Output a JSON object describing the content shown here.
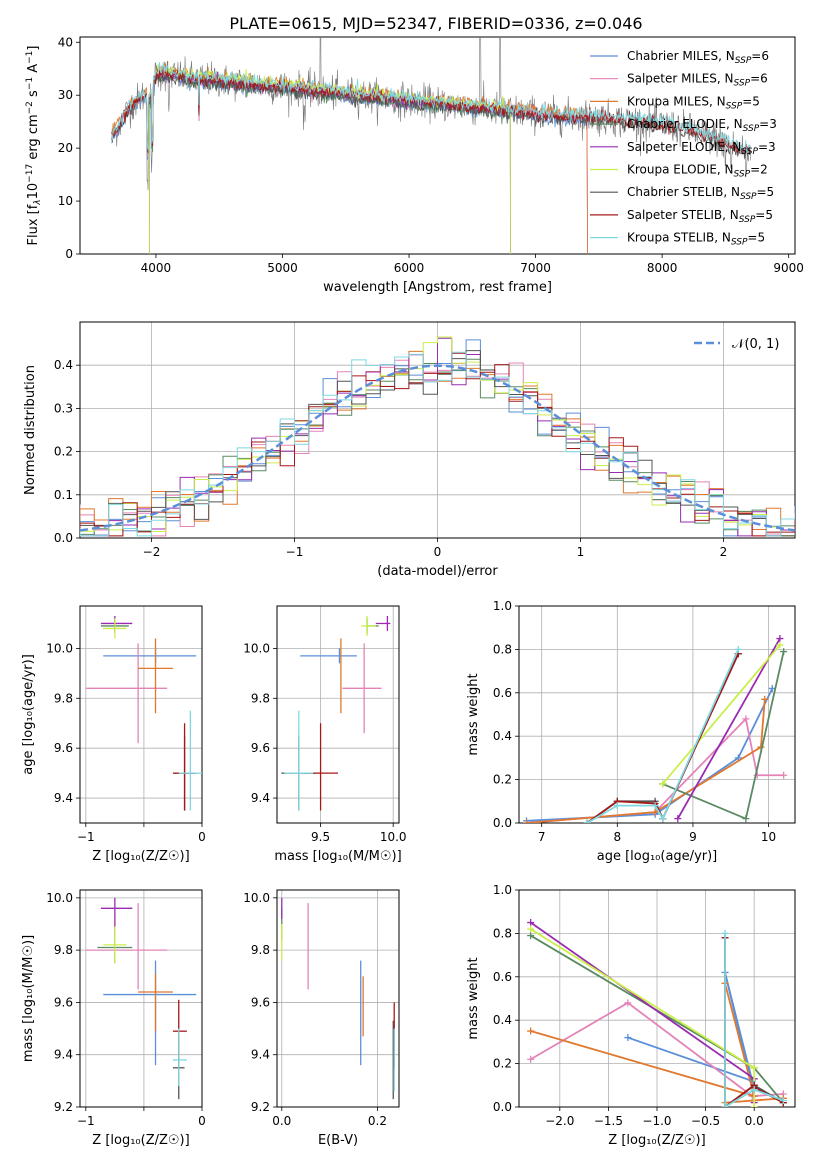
{
  "figure": {
    "title": "PLATE=0615, MJD=52347, FIBERID=0336, z=0.046"
  },
  "colors": {
    "Chabrier MILES": "#5b8fd9",
    "Salpeter MILES": "#e483b8",
    "Kroupa MILES": "#e0782e",
    "Chabrier ELODIE": "#5a8a62",
    "Salpeter ELODIE": "#9a2bb0",
    "Kroupa ELODIE": "#c9ef4a",
    "Chabrier STELIB": "#555555",
    "Salpeter STELIB": "#a51818",
    "Kroupa STELIB": "#7fd8e0"
  },
  "chart_data": [
    {
      "id": "spectrum",
      "type": "line",
      "xlabel": "wavelength [Angstrom, rest frame]",
      "ylabel_parts": [
        "Flux [f",
        "λ",
        "10",
        "−17",
        " erg cm",
        "−2",
        " s",
        "−1",
        " A",
        "−1",
        "]"
      ],
      "xlim": [
        3400,
        9050
      ],
      "ylim": [
        0,
        41
      ],
      "xticks": [
        4000,
        5000,
        6000,
        7000,
        8000,
        9000
      ],
      "yticks": [
        0,
        10,
        20,
        30,
        40
      ],
      "grid": false,
      "legend_position": "upper-right",
      "legend": [
        {
          "name": "Chabrier MILES",
          "nssp": "6"
        },
        {
          "name": "Salpeter MILES",
          "nssp": "6"
        },
        {
          "name": "Kroupa MILES",
          "nssp": "5"
        },
        {
          "name": "Chabrier ELODIE",
          "nssp": "3"
        },
        {
          "name": "Salpeter ELODIE",
          "nssp": "3"
        },
        {
          "name": "Kroupa ELODIE",
          "nssp": "2"
        },
        {
          "name": "Chabrier STELIB",
          "nssp": "5"
        },
        {
          "name": "Salpeter STELIB",
          "nssp": "5"
        },
        {
          "name": "Kroupa STELIB",
          "nssp": "5"
        }
      ],
      "nssp_prefix": "N",
      "nssp_sub": "SSP",
      "data_curve": {
        "x": [
          3650,
          3700,
          3800,
          3900,
          3950,
          4000,
          4100,
          4200,
          4300,
          4400,
          4600,
          4800,
          5000,
          5200,
          5400,
          5600,
          5800,
          6000,
          6200,
          6400,
          6600,
          6800,
          7000,
          7200,
          7400,
          7600,
          7800,
          8000,
          8200,
          8400,
          8600,
          8700
        ],
        "y": [
          22,
          24,
          28,
          30,
          29,
          34,
          34,
          33.5,
          33,
          33,
          32.5,
          32,
          31.5,
          31,
          30.5,
          30,
          29.5,
          29,
          28.5,
          28,
          27.5,
          27,
          26.5,
          26,
          26,
          25.5,
          25,
          24.5,
          23.5,
          22,
          20,
          19
        ]
      },
      "model_ranges": {
        "Chabrier MILES": [
          3650,
          7410
        ],
        "Salpeter MILES": [
          3650,
          7410
        ],
        "Kroupa MILES": [
          3650,
          7410
        ],
        "Chabrier ELODIE": [
          3950,
          6800
        ],
        "Salpeter ELODIE": [
          3950,
          6800
        ],
        "Kroupa ELODIE": [
          3950,
          6800
        ],
        "Chabrier STELIB": [
          3650,
          8700
        ],
        "Salpeter STELIB": [
          3650,
          8700
        ],
        "Kroupa STELIB": [
          3650,
          8700
        ]
      }
    },
    {
      "id": "residuals",
      "type": "step",
      "xlabel": "(data-model)/error",
      "ylabel": "Normed distribution",
      "xlim": [
        -2.5,
        2.5
      ],
      "ylim": [
        0,
        0.5
      ],
      "xticks": [
        -2,
        -1,
        0,
        1,
        2
      ],
      "yticks": [
        0.0,
        0.1,
        0.2,
        0.3,
        0.4
      ],
      "grid": true,
      "legend_position": "upper-right",
      "legend_label": "𝒩(0, 1)",
      "gauss_color": "#5b8fd9"
    },
    {
      "id": "age-vs-z",
      "type": "errorbar",
      "xlabel": "Z [log₁₀(Z/Z☉)]",
      "ylabel": "age  [log₁₀(age/yr)]",
      "xlim": [
        -1.05,
        0
      ],
      "ylim": [
        9.3,
        10.17
      ],
      "xticks": [
        -1,
        -0.5,
        0
      ],
      "xticklabels": [
        "−1",
        "",
        "0"
      ],
      "yticks": [
        9.4,
        9.6,
        9.8,
        10.0
      ],
      "grid": true,
      "points": [
        {
          "model": "Chabrier MILES",
          "x": -0.4,
          "xerr": [
            0.45,
            0.35
          ],
          "y": 9.97,
          "yerr": [
            0.03,
            0.03
          ]
        },
        {
          "model": "Salpeter MILES",
          "x": -0.55,
          "xerr": [
            0.45,
            0.25
          ],
          "y": 9.84,
          "yerr": [
            0.22,
            0.18
          ]
        },
        {
          "model": "Kroupa MILES",
          "x": -0.4,
          "xerr": [
            0.15,
            0.15
          ],
          "y": 9.92,
          "yerr": [
            0.18,
            0.12
          ]
        },
        {
          "model": "Chabrier ELODIE",
          "x": -0.75,
          "xerr": [
            0.12,
            0.12
          ],
          "y": 10.09,
          "yerr": [
            0.03,
            0.03
          ]
        },
        {
          "model": "Salpeter ELODIE",
          "x": -0.75,
          "xerr": [
            0.12,
            0.15
          ],
          "y": 10.1,
          "yerr": [
            0.03,
            0.03
          ]
        },
        {
          "model": "Kroupa ELODIE",
          "x": -0.75,
          "xerr": [
            0.1,
            0.1
          ],
          "y": 10.08,
          "yerr": [
            0.04,
            0.04
          ]
        },
        {
          "model": "Chabrier STELIB",
          "x": -0.15,
          "xerr": [
            0.1,
            0.1
          ],
          "y": 9.5,
          "yerr": [
            0.15,
            0.15
          ]
        },
        {
          "model": "Salpeter STELIB",
          "x": -0.15,
          "xerr": [
            0.1,
            0.1
          ],
          "y": 9.5,
          "yerr": [
            0.15,
            0.2
          ]
        },
        {
          "model": "Kroupa STELIB",
          "x": -0.1,
          "xerr": [
            0.1,
            0.12
          ],
          "y": 9.5,
          "yerr": [
            0.15,
            0.25
          ]
        }
      ]
    },
    {
      "id": "age-vs-mass",
      "type": "errorbar",
      "xlabel": "mass [log₁₀(M/M☉)]",
      "ylabel": "",
      "xlim": [
        9.2,
        10.04
      ],
      "ylim": [
        9.3,
        10.17
      ],
      "xticks": [
        9.5,
        10.0
      ],
      "yticks": [
        9.4,
        9.6,
        9.8,
        10.0
      ],
      "grid": true,
      "points": [
        {
          "model": "Chabrier MILES",
          "x": 9.63,
          "xerr": [
            0.27,
            0.12
          ],
          "y": 9.97,
          "yerr": [
            0.03,
            0.03
          ]
        },
        {
          "model": "Salpeter MILES",
          "x": 9.8,
          "xerr": [
            0.15,
            0.12
          ],
          "y": 9.84,
          "yerr": [
            0.18,
            0.18
          ]
        },
        {
          "model": "Kroupa MILES",
          "x": 9.64,
          "xerr": [
            0.0,
            0.0
          ],
          "y": 9.92,
          "yerr": [
            0.18,
            0.12
          ]
        },
        {
          "model": "Chabrier ELODIE",
          "x": 9.82,
          "xerr": [
            0.0,
            0.08
          ],
          "y": 10.09,
          "yerr": [
            0.03,
            0.03
          ]
        },
        {
          "model": "Salpeter ELODIE",
          "x": 9.96,
          "xerr": [
            0.08,
            0.02
          ],
          "y": 10.1,
          "yerr": [
            0.03,
            0.03
          ]
        },
        {
          "model": "Kroupa ELODIE",
          "x": 9.82,
          "xerr": [
            0.04,
            0.06
          ],
          "y": 10.09,
          "yerr": [
            0.04,
            0.04
          ]
        },
        {
          "model": "Chabrier STELIB",
          "x": 9.35,
          "xerr": [
            0.12,
            0.12
          ],
          "y": 9.5,
          "yerr": [
            0.15,
            0.15
          ]
        },
        {
          "model": "Salpeter STELIB",
          "x": 9.5,
          "xerr": [
            0.12,
            0.12
          ],
          "y": 9.5,
          "yerr": [
            0.15,
            0.2
          ]
        },
        {
          "model": "Kroupa STELIB",
          "x": 9.35,
          "xerr": [
            0.1,
            0.1
          ],
          "y": 9.5,
          "yerr": [
            0.15,
            0.25
          ]
        }
      ]
    },
    {
      "id": "weight-vs-age",
      "type": "line",
      "xlabel": "age  [log₁₀(age/yr)]",
      "ylabel": "mass weight",
      "xlim": [
        6.7,
        10.35
      ],
      "ylim": [
        0,
        1
      ],
      "xticks": [
        7,
        8,
        9,
        10
      ],
      "yticks": [
        0.0,
        0.2,
        0.4,
        0.6,
        0.8,
        1.0
      ],
      "grid": true,
      "series": [
        {
          "model": "Chabrier MILES",
          "x": [
            6.8,
            8.5,
            9.6,
            10.05
          ],
          "y": [
            0.01,
            0.04,
            0.3,
            0.62
          ]
        },
        {
          "model": "Salpeter MILES",
          "x": [
            6.8,
            8.5,
            9.7,
            9.85,
            10.2
          ],
          "y": [
            0.0,
            0.05,
            0.48,
            0.22,
            0.22
          ]
        },
        {
          "model": "Kroupa MILES",
          "x": [
            6.8,
            8.5,
            9.9,
            9.95
          ],
          "y": [
            0.0,
            0.05,
            0.35,
            0.57
          ]
        },
        {
          "model": "Chabrier ELODIE",
          "x": [
            8.6,
            9.7,
            10.2
          ],
          "y": [
            0.18,
            0.02,
            0.79
          ]
        },
        {
          "model": "Salpeter ELODIE",
          "x": [
            8.8,
            10.15
          ],
          "y": [
            0.02,
            0.85
          ]
        },
        {
          "model": "Kroupa ELODIE",
          "x": [
            8.6,
            10.15
          ],
          "y": [
            0.18,
            0.82
          ]
        },
        {
          "model": "Chabrier STELIB",
          "x": [
            7.6,
            8.0,
            8.5,
            8.6,
            9.6
          ],
          "y": [
            0.0,
            0.1,
            0.1,
            0.02,
            0.78
          ]
        },
        {
          "model": "Salpeter STELIB",
          "x": [
            7.6,
            8.0,
            8.5,
            8.6,
            9.6
          ],
          "y": [
            0.0,
            0.1,
            0.09,
            0.02,
            0.78
          ]
        },
        {
          "model": "Kroupa STELIB",
          "x": [
            7.6,
            8.0,
            8.5,
            8.6,
            9.6
          ],
          "y": [
            0.0,
            0.08,
            0.08,
            0.02,
            0.8
          ]
        }
      ]
    },
    {
      "id": "mass-vs-z",
      "type": "errorbar",
      "xlabel": "Z [log₁₀(Z/Z☉)]",
      "ylabel": "mass [log₁₀(M/M☉)]",
      "xlim": [
        -1.05,
        0
      ],
      "ylim": [
        9.2,
        10.03
      ],
      "xticks": [
        -1,
        -0.5,
        0
      ],
      "xticklabels": [
        "−1",
        "",
        "0"
      ],
      "yticks": [
        9.2,
        9.4,
        9.6,
        9.8,
        10.0
      ],
      "grid": true,
      "points": [
        {
          "model": "Chabrier MILES",
          "x": -0.4,
          "xerr": [
            0.45,
            0.35
          ],
          "y": 9.63,
          "yerr": [
            0.27,
            0.13
          ]
        },
        {
          "model": "Salpeter MILES",
          "x": -0.55,
          "xerr": [
            0.45,
            0.25
          ],
          "y": 9.8,
          "yerr": [
            0.15,
            0.18
          ]
        },
        {
          "model": "Kroupa MILES",
          "x": -0.4,
          "xerr": [
            0.15,
            0.15
          ],
          "y": 9.64,
          "yerr": [
            0.15,
            0.07
          ]
        },
        {
          "model": "Chabrier ELODIE",
          "x": -0.75,
          "xerr": [
            0.15,
            0.15
          ],
          "y": 9.81,
          "yerr": [
            0.06,
            0.06
          ]
        },
        {
          "model": "Salpeter ELODIE",
          "x": -0.75,
          "xerr": [
            0.12,
            0.15
          ],
          "y": 9.96,
          "yerr": [
            0.1,
            0.04
          ]
        },
        {
          "model": "Kroupa ELODIE",
          "x": -0.75,
          "xerr": [
            0.1,
            0.1
          ],
          "y": 9.82,
          "yerr": [
            0.07,
            0.07
          ]
        },
        {
          "model": "Chabrier STELIB",
          "x": -0.2,
          "xerr": [
            0.05,
            0.05
          ],
          "y": 9.35,
          "yerr": [
            0.12,
            0.12
          ]
        },
        {
          "model": "Salpeter STELIB",
          "x": -0.2,
          "xerr": [
            0.05,
            0.07
          ],
          "y": 9.49,
          "yerr": [
            0.12,
            0.12
          ]
        },
        {
          "model": "Kroupa STELIB",
          "x": -0.2,
          "xerr": [
            0.05,
            0.07
          ],
          "y": 9.38,
          "yerr": [
            0.1,
            0.12
          ]
        }
      ]
    },
    {
      "id": "mass-vs-ebv",
      "type": "errorbar",
      "xlabel": "E(B-V)",
      "ylabel": "",
      "xlim": [
        -0.01,
        0.245
      ],
      "ylim": [
        9.2,
        10.03
      ],
      "xticks": [
        0.0,
        0.2
      ],
      "yticks": [
        9.2,
        9.4,
        9.6,
        9.8,
        10.0
      ],
      "grid": true,
      "points": [
        {
          "model": "Chabrier MILES",
          "x": 0.165,
          "xerr": [
            0,
            0
          ],
          "y": 9.5,
          "yerr": [
            0.14,
            0.26
          ]
        },
        {
          "model": "Salpeter MILES",
          "x": 0.055,
          "xerr": [
            0,
            0
          ],
          "y": 9.8,
          "yerr": [
            0.15,
            0.18
          ]
        },
        {
          "model": "Kroupa MILES",
          "x": 0.17,
          "xerr": [
            0,
            0
          ],
          "y": 9.5,
          "yerr": [
            0.03,
            0.2
          ]
        },
        {
          "model": "Chabrier ELODIE",
          "x": 0.0,
          "xerr": [
            0,
            0
          ],
          "y": 9.9,
          "yerr": [
            0.06,
            0.06
          ]
        },
        {
          "model": "Salpeter ELODIE",
          "x": 0.0,
          "xerr": [
            0,
            0
          ],
          "y": 9.96,
          "yerr": [
            0.04,
            0.04
          ]
        },
        {
          "model": "Kroupa ELODIE",
          "x": 0.0,
          "xerr": [
            0,
            0
          ],
          "y": 9.83,
          "yerr": [
            0.07,
            0.07
          ]
        },
        {
          "model": "Chabrier STELIB",
          "x": 0.233,
          "xerr": [
            0,
            0
          ],
          "y": 9.4,
          "yerr": [
            0.17,
            0.13
          ]
        },
        {
          "model": "Salpeter STELIB",
          "x": 0.235,
          "xerr": [
            0,
            0
          ],
          "y": 9.45,
          "yerr": [
            0.1,
            0.15
          ]
        },
        {
          "model": "Kroupa STELIB",
          "x": 0.235,
          "xerr": [
            0,
            0
          ],
          "y": 9.38,
          "yerr": [
            0.12,
            0.12
          ]
        }
      ]
    },
    {
      "id": "weight-vs-z",
      "type": "line",
      "xlabel": "Z [log₁₀(Z/Z☉)]",
      "ylabel": "mass weight",
      "xlim": [
        -2.42,
        0.42
      ],
      "ylim": [
        0,
        1
      ],
      "xticks": [
        -2.0,
        -1.5,
        -1.0,
        -0.5,
        0.0
      ],
      "yticks": [
        0.0,
        0.2,
        0.4,
        0.6,
        0.8,
        1.0
      ],
      "grid": true,
      "series": [
        {
          "model": "Chabrier MILES",
          "x": [
            -1.3,
            -0.02,
            -0.3,
            0.0
          ],
          "y": [
            0.32,
            0.12,
            0.62,
            0.05
          ]
        },
        {
          "model": "Salpeter MILES",
          "x": [
            -2.3,
            -1.3,
            -0.02,
            0.3
          ],
          "y": [
            0.22,
            0.48,
            0.05,
            0.06
          ]
        },
        {
          "model": "Kroupa MILES",
          "x": [
            -2.3,
            0.0,
            -0.3,
            -0.3,
            0.3
          ],
          "y": [
            0.35,
            0.05,
            0.57,
            0.02,
            0.04
          ]
        },
        {
          "model": "Chabrier ELODIE",
          "x": [
            -2.3,
            0.0,
            0.3
          ],
          "y": [
            0.79,
            0.18,
            0.02
          ]
        },
        {
          "model": "Salpeter ELODIE",
          "x": [
            -2.3,
            0.0,
            0.0
          ],
          "y": [
            0.85,
            0.13,
            0.02
          ]
        },
        {
          "model": "Kroupa ELODIE",
          "x": [
            -2.3,
            0.0,
            0.0
          ],
          "y": [
            0.82,
            0.18,
            0.0
          ]
        },
        {
          "model": "Chabrier STELIB",
          "x": [
            -0.3,
            -0.3,
            0.0,
            0.0,
            0.3
          ],
          "y": [
            0.78,
            0.0,
            0.1,
            0.1,
            0.02
          ]
        },
        {
          "model": "Salpeter STELIB",
          "x": [
            -0.3,
            -0.3,
            0.0,
            0.0,
            0.3
          ],
          "y": [
            0.78,
            0.0,
            0.1,
            0.09,
            0.02
          ]
        },
        {
          "model": "Kroupa STELIB",
          "x": [
            -0.3,
            -0.3,
            0.0,
            0.0,
            0.3
          ],
          "y": [
            0.8,
            0.0,
            0.08,
            0.08,
            0.03
          ]
        }
      ]
    }
  ]
}
